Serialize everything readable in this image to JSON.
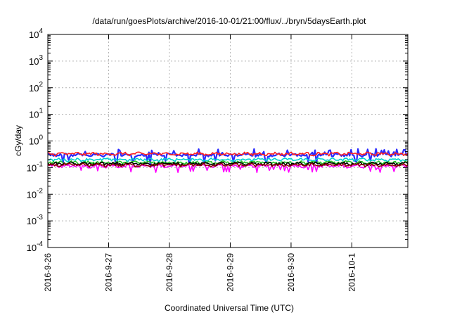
{
  "chart_data": {
    "type": "line",
    "title": "/data/run/goesPlots/archive/2016-10-01/21:00/flux/../bryn/5daysEarth.plot",
    "xlabel": "Coordinated Universal Time (UTC)",
    "ylabel": "cGy/day",
    "yscale": "log",
    "ylim": [
      0.0001,
      10000
    ],
    "xlim": [
      0,
      5.92
    ],
    "grid": true,
    "legend": "none",
    "y_ticks": [
      {
        "exp": "-4",
        "value": 0.0001
      },
      {
        "exp": "-3",
        "value": 0.001
      },
      {
        "exp": "-2",
        "value": 0.01
      },
      {
        "exp": "-1",
        "value": 0.1
      },
      {
        "exp": "0",
        "value": 1
      },
      {
        "exp": "1",
        "value": 10
      },
      {
        "exp": "2",
        "value": 100
      },
      {
        "exp": "3",
        "value": 1000
      },
      {
        "exp": "4",
        "value": 10000
      }
    ],
    "y_tick_base": "10",
    "x_ticks": [
      {
        "label": "2016-9-26",
        "x": 0
      },
      {
        "label": "2016-9-27",
        "x": 1
      },
      {
        "label": "2016-9-28",
        "x": 2
      },
      {
        "label": "2016-9-29",
        "x": 3
      },
      {
        "label": "2016-9-30",
        "x": 4
      },
      {
        "label": "2016-10-1",
        "x": 5
      }
    ],
    "series": [
      {
        "color": "#ff00ff",
        "level": 0.115,
        "dips": true
      },
      {
        "color": "#2a2aff",
        "level": 0.3,
        "spiky": true
      },
      {
        "color": "#ff2020",
        "level": 0.33
      },
      {
        "color": "#00d0d0",
        "level": 0.2
      },
      {
        "color": "#20c020",
        "level": 0.155
      },
      {
        "color": "#000000",
        "level": 0.14
      },
      {
        "color": "#8b0000",
        "level": 0.125
      }
    ]
  }
}
